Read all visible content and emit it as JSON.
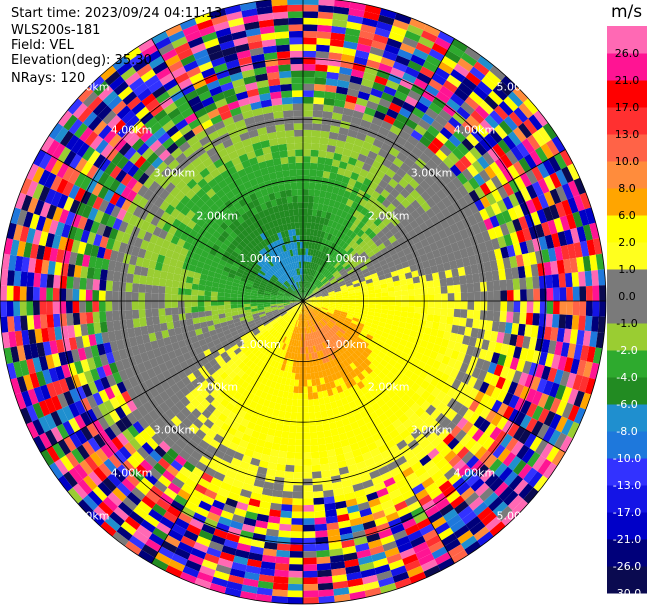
{
  "header": {
    "start_time": "Start time: 2023/09/24 04:11:13",
    "instrument": "WLS200s-181",
    "field": "Field: VEL",
    "elevation": "Elevation(deg): 35.30",
    "nrays": "NRays: 120"
  },
  "chart_data": {
    "type": "heatmap",
    "projection": "polar PPI",
    "field": "VEL",
    "units": "m/s",
    "nrays": 120,
    "elevation_deg": 35.3,
    "range_km": [
      0,
      5
    ],
    "range_rings_km": [
      1,
      2,
      3,
      4,
      5
    ],
    "ring_labels": [
      "1.00km",
      "2.00km",
      "3.00km",
      "4.00km",
      "5.00km"
    ],
    "colorbar": {
      "levels": [
        -30.0,
        -26.0,
        -21.0,
        -17.0,
        -13.0,
        -10.0,
        -8.0,
        -6.0,
        -4.0,
        -2.0,
        -1.0,
        0.0,
        1.0,
        2.0,
        6.0,
        8.0,
        10.0,
        13.0,
        17.0,
        21.0,
        26.0
      ],
      "tick_labels": [
        "-30.0",
        "-26.0",
        "-21.0",
        "-17.0",
        "-13.0",
        "-10.0",
        "-8.0",
        "-6.0",
        "-4.0",
        "-2.0",
        "-1.0",
        "0.0",
        "1.0",
        "2.0",
        "6.0",
        "8.0",
        "10.0",
        "13.0",
        "17.0",
        "21.0",
        "26.0"
      ],
      "colors": [
        "#0a0a50",
        "#00007a",
        "#0000c8",
        "#1414e6",
        "#3232ff",
        "#1e78dc",
        "#1f8fcf",
        "#228b22",
        "#2eaa2e",
        "#9acd32",
        "#7a7a7a",
        "#7a7a7a",
        "#ffff1e",
        "#ffff00",
        "#ffa500",
        "#ff8c3c",
        "#ff6347",
        "#ff3030",
        "#ff0000",
        "#ff1493",
        "#ff69b4"
      ]
    },
    "velocity_pattern": {
      "positive_toward_bearing_deg": 155,
      "positive_max_ms": 9,
      "negative_max_ms": -7,
      "valid_range_km": 3.3,
      "noise_start_km": 3.9
    }
  }
}
